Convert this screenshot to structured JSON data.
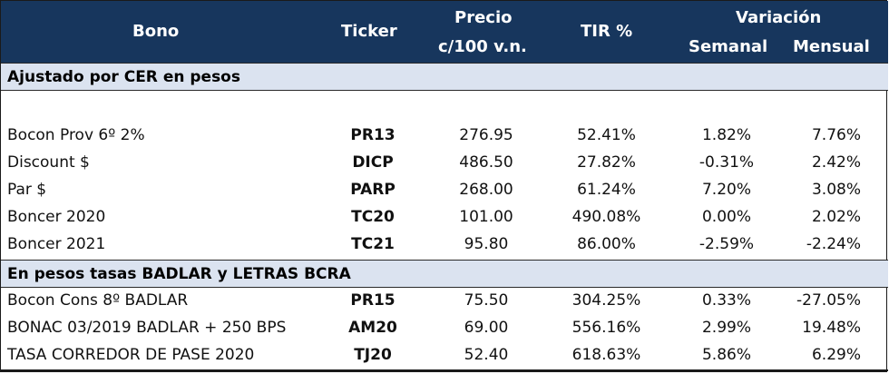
{
  "header": {
    "bono": "Bono",
    "ticker": "Ticker",
    "precio_line1": "Precio",
    "precio_line2": "c/100 v.n.",
    "tir": "TIR %",
    "variacion": "Variación",
    "semanal": "Semanal",
    "mensual": "Mensual"
  },
  "sections": [
    {
      "title": "Ajustado por CER en pesos",
      "rows": [
        {
          "bono": "Bocon Prov 6º 2%",
          "ticker": "PR13",
          "precio": "276.95",
          "tir": "52.41%",
          "semanal": "1.82%",
          "mensual": "7.76%"
        },
        {
          "bono": "Discount $",
          "ticker": "DICP",
          "precio": "486.50",
          "tir": "27.82%",
          "semanal": "-0.31%",
          "mensual": "2.42%"
        },
        {
          "bono": "Par $",
          "ticker": "PARP",
          "precio": "268.00",
          "tir": "61.24%",
          "semanal": "7.20%",
          "mensual": "3.08%"
        },
        {
          "bono": "Boncer 2020",
          "ticker": "TC20",
          "precio": "101.00",
          "tir": "490.08%",
          "semanal": "0.00%",
          "mensual": "2.02%"
        },
        {
          "bono": "Boncer 2021",
          "ticker": "TC21",
          "precio": "95.80",
          "tir": "86.00%",
          "semanal": "-2.59%",
          "mensual": "-2.24%"
        }
      ]
    },
    {
      "title": "En pesos tasas BADLAR y LETRAS BCRA",
      "rows": [
        {
          "bono": "Bocon Cons 8º BADLAR",
          "ticker": "PR15",
          "precio": "75.50",
          "tir": "304.25%",
          "semanal": "0.33%",
          "mensual": "-27.05%"
        },
        {
          "bono": "BONAC  03/2019 BADLAR + 250 BPS",
          "ticker": "AM20",
          "precio": "69.00",
          "tir": "556.16%",
          "semanal": "2.99%",
          "mensual": "19.48%"
        },
        {
          "bono": "TASA CORREDOR DE PASE 2020",
          "ticker": "TJ20",
          "precio": "52.40",
          "tir": "618.63%",
          "semanal": "5.86%",
          "mensual": "6.29%"
        }
      ]
    }
  ]
}
